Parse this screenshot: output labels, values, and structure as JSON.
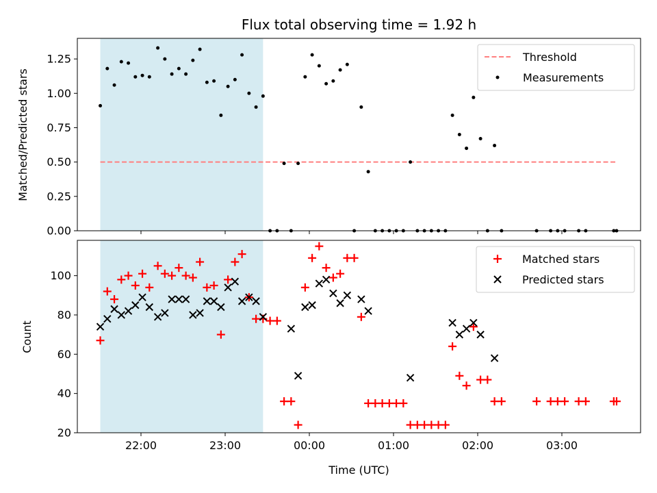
{
  "chart_data": [
    {
      "type": "scatter",
      "title": "Flux total observing time = 1.92 h",
      "xlabel": "",
      "ylabel": "Matched/Predicted stars",
      "ylim": [
        0,
        1.4
      ],
      "y_ticks": [
        "0.00",
        "0.25",
        "0.50",
        "0.75",
        "1.00",
        "1.25"
      ],
      "y_tick_values": [
        0,
        0.25,
        0.5,
        0.75,
        1.0,
        1.25
      ],
      "grid": false,
      "legend_placement": "top-right",
      "threshold": {
        "name": "Threshold",
        "value": 0.5,
        "color": "#ff7f7f",
        "x_range": [
          "21:31",
          "03:39"
        ]
      },
      "highlight_span": {
        "start": "21:31",
        "end": "23:27",
        "color": "#add8e6"
      },
      "series": [
        {
          "name": "Measurements",
          "color": "#000000",
          "points": [
            [
              "21:31",
              0.91
            ],
            [
              "21:36",
              1.18
            ],
            [
              "21:41",
              1.06
            ],
            [
              "21:46",
              1.23
            ],
            [
              "21:51",
              1.22
            ],
            [
              "21:56",
              1.12
            ],
            [
              "22:01",
              1.13
            ],
            [
              "22:06",
              1.12
            ],
            [
              "22:12",
              1.33
            ],
            [
              "22:17",
              1.25
            ],
            [
              "22:22",
              1.14
            ],
            [
              "22:27",
              1.18
            ],
            [
              "22:32",
              1.14
            ],
            [
              "22:37",
              1.24
            ],
            [
              "22:42",
              1.32
            ],
            [
              "22:47",
              1.08
            ],
            [
              "22:52",
              1.09
            ],
            [
              "22:57",
              0.84
            ],
            [
              "23:02",
              1.05
            ],
            [
              "23:07",
              1.1
            ],
            [
              "23:12",
              1.28
            ],
            [
              "23:17",
              1.0
            ],
            [
              "23:22",
              0.9
            ],
            [
              "23:27",
              0.98
            ],
            [
              "23:32",
              0.0
            ],
            [
              "23:37",
              0.0
            ],
            [
              "23:42",
              0.49
            ],
            [
              "23:47",
              0.0
            ],
            [
              "23:52",
              0.49
            ],
            [
              "23:57",
              1.12
            ],
            [
              "00:02",
              1.28
            ],
            [
              "00:07",
              1.2
            ],
            [
              "00:12",
              1.07
            ],
            [
              "00:17",
              1.09
            ],
            [
              "00:22",
              1.17
            ],
            [
              "00:27",
              1.21
            ],
            [
              "00:32",
              0.0
            ],
            [
              "00:37",
              0.9
            ],
            [
              "00:42",
              0.43
            ],
            [
              "00:47",
              0.0
            ],
            [
              "00:52",
              0.0
            ],
            [
              "00:57",
              0.0
            ],
            [
              "01:02",
              0.0
            ],
            [
              "01:07",
              0.0
            ],
            [
              "01:12",
              0.5
            ],
            [
              "01:17",
              0.0
            ],
            [
              "01:22",
              0.0
            ],
            [
              "01:27",
              0.0
            ],
            [
              "01:32",
              0.0
            ],
            [
              "01:37",
              0.0
            ],
            [
              "01:42",
              0.84
            ],
            [
              "01:47",
              0.7
            ],
            [
              "01:52",
              0.6
            ],
            [
              "01:57",
              0.97
            ],
            [
              "02:02",
              0.67
            ],
            [
              "02:07",
              0.0
            ],
            [
              "02:12",
              0.62
            ],
            [
              "02:17",
              0.0
            ],
            [
              "02:42",
              0.0
            ],
            [
              "02:52",
              0.0
            ],
            [
              "02:57",
              0.0
            ],
            [
              "03:02",
              0.0
            ],
            [
              "03:12",
              0.0
            ],
            [
              "03:17",
              0.0
            ],
            [
              "03:37",
              0.0
            ],
            [
              "03:39",
              0.0
            ]
          ]
        }
      ]
    },
    {
      "type": "scatter",
      "title": "",
      "xlabel": "Time (UTC)",
      "ylabel": "Count",
      "ylim": [
        20,
        118
      ],
      "y_ticks": [
        "20",
        "40",
        "60",
        "80",
        "100"
      ],
      "y_tick_values": [
        20,
        40,
        60,
        80,
        100
      ],
      "x_ticks": [
        "22:00",
        "23:00",
        "00:00",
        "01:00",
        "02:00",
        "03:00"
      ],
      "grid": false,
      "legend_placement": "top-right",
      "highlight_span": {
        "start": "21:31",
        "end": "23:27",
        "color": "#add8e6"
      },
      "series": [
        {
          "name": "Matched stars",
          "color": "#ff0000",
          "marker": "plus",
          "points": [
            [
              "21:31",
              67
            ],
            [
              "21:36",
              92
            ],
            [
              "21:41",
              88
            ],
            [
              "21:46",
              98
            ],
            [
              "21:51",
              100
            ],
            [
              "21:56",
              95
            ],
            [
              "22:01",
              101
            ],
            [
              "22:06",
              94
            ],
            [
              "22:12",
              105
            ],
            [
              "22:17",
              101
            ],
            [
              "22:22",
              100
            ],
            [
              "22:27",
              104
            ],
            [
              "22:32",
              100
            ],
            [
              "22:37",
              99
            ],
            [
              "22:42",
              107
            ],
            [
              "22:47",
              94
            ],
            [
              "22:52",
              95
            ],
            [
              "22:57",
              70
            ],
            [
              "23:02",
              98
            ],
            [
              "23:07",
              107
            ],
            [
              "23:12",
              111
            ],
            [
              "23:17",
              89
            ],
            [
              "23:22",
              78
            ],
            [
              "23:27",
              78
            ],
            [
              "23:32",
              77
            ],
            [
              "23:37",
              77
            ],
            [
              "23:42",
              36
            ],
            [
              "23:47",
              36
            ],
            [
              "23:52",
              24
            ],
            [
              "23:57",
              94
            ],
            [
              "00:02",
              109
            ],
            [
              "00:07",
              115
            ],
            [
              "00:12",
              104
            ],
            [
              "00:17",
              99
            ],
            [
              "00:22",
              101
            ],
            [
              "00:27",
              109
            ],
            [
              "00:32",
              109
            ],
            [
              "00:37",
              79
            ],
            [
              "00:42",
              35
            ],
            [
              "00:47",
              35
            ],
            [
              "00:52",
              35
            ],
            [
              "00:57",
              35
            ],
            [
              "01:02",
              35
            ],
            [
              "01:07",
              35
            ],
            [
              "01:12",
              24
            ],
            [
              "01:17",
              24
            ],
            [
              "01:22",
              24
            ],
            [
              "01:27",
              24
            ],
            [
              "01:32",
              24
            ],
            [
              "01:37",
              24
            ],
            [
              "01:42",
              64
            ],
            [
              "01:47",
              49
            ],
            [
              "01:52",
              44
            ],
            [
              "01:57",
              74
            ],
            [
              "02:02",
              47
            ],
            [
              "02:07",
              47
            ],
            [
              "02:12",
              36
            ],
            [
              "02:17",
              36
            ],
            [
              "02:42",
              36
            ],
            [
              "02:52",
              36
            ],
            [
              "02:57",
              36
            ],
            [
              "03:02",
              36
            ],
            [
              "03:12",
              36
            ],
            [
              "03:17",
              36
            ],
            [
              "03:37",
              36
            ],
            [
              "03:39",
              36
            ]
          ]
        },
        {
          "name": "Predicted stars",
          "color": "#000000",
          "marker": "x",
          "points": [
            [
              "21:31",
              74
            ],
            [
              "21:36",
              78
            ],
            [
              "21:41",
              83
            ],
            [
              "21:46",
              80
            ],
            [
              "21:51",
              82
            ],
            [
              "21:56",
              85
            ],
            [
              "22:01",
              89
            ],
            [
              "22:06",
              84
            ],
            [
              "22:12",
              79
            ],
            [
              "22:17",
              81
            ],
            [
              "22:22",
              88
            ],
            [
              "22:27",
              88
            ],
            [
              "22:32",
              88
            ],
            [
              "22:37",
              80
            ],
            [
              "22:42",
              81
            ],
            [
              "22:47",
              87
            ],
            [
              "22:52",
              87
            ],
            [
              "22:57",
              84
            ],
            [
              "23:02",
              94
            ],
            [
              "23:07",
              97
            ],
            [
              "23:12",
              87
            ],
            [
              "23:17",
              89
            ],
            [
              "23:22",
              87
            ],
            [
              "23:27",
              79
            ],
            [
              "23:47",
              73
            ],
            [
              "23:52",
              49
            ],
            [
              "23:57",
              84
            ],
            [
              "00:02",
              85
            ],
            [
              "00:07",
              96
            ],
            [
              "00:12",
              98
            ],
            [
              "00:17",
              91
            ],
            [
              "00:22",
              86
            ],
            [
              "00:27",
              90
            ],
            [
              "00:37",
              88
            ],
            [
              "00:42",
              82
            ],
            [
              "01:12",
              48
            ],
            [
              "01:42",
              76
            ],
            [
              "01:47",
              70
            ],
            [
              "01:52",
              73
            ],
            [
              "01:57",
              76
            ],
            [
              "02:02",
              70
            ],
            [
              "02:12",
              58
            ]
          ]
        }
      ]
    }
  ]
}
